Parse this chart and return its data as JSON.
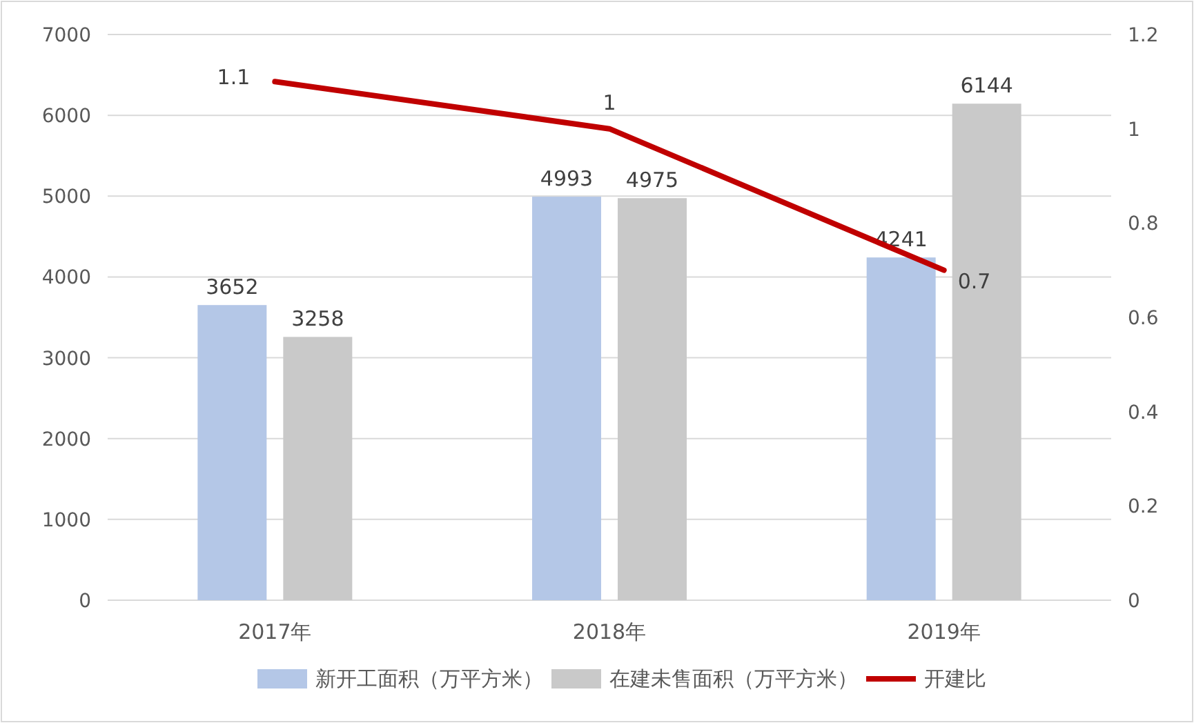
{
  "chart_data": {
    "type": "bar",
    "categories": [
      "2017年",
      "2018年",
      "2019年"
    ],
    "series": [
      {
        "name": "新开工面积（万平方米）",
        "color": "#b4c7e7",
        "values": [
          3652,
          4993,
          4241
        ]
      },
      {
        "name": "在建未售面积（万平方米）",
        "color": "#c9c9c9",
        "values": [
          3258,
          4975,
          6144
        ]
      },
      {
        "name": "开建比",
        "type": "line",
        "axis": "y2",
        "color": "#c00000",
        "values": [
          1.1,
          1,
          0.7
        ]
      }
    ],
    "ylim": [
      0,
      7000
    ],
    "yticks": [
      0,
      1000,
      2000,
      3000,
      4000,
      5000,
      6000,
      7000
    ],
    "y2lim": [
      0,
      1.2
    ],
    "y2ticks": [
      0,
      0.2,
      0.4,
      0.6,
      0.8,
      1,
      1.2
    ],
    "grid": "y",
    "legend": "bottom",
    "data_labels": true
  }
}
